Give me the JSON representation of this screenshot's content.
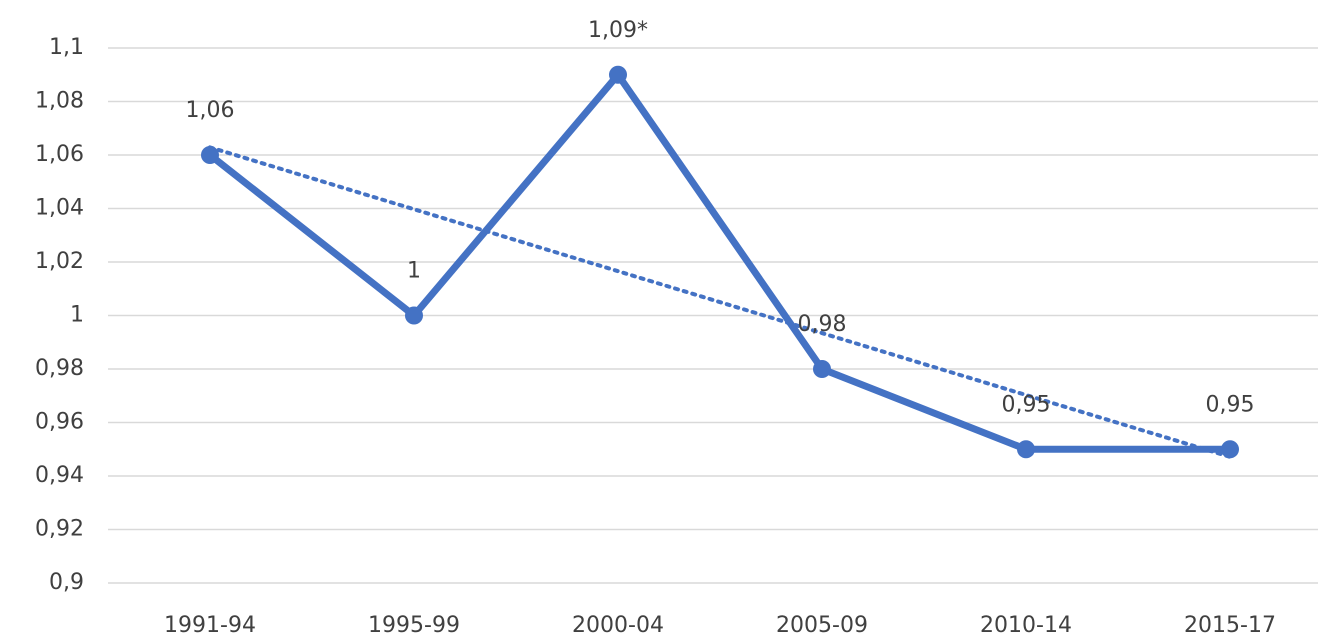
{
  "chart_data": {
    "type": "line",
    "categories": [
      "1991-94",
      "1995-99",
      "2000-04",
      "2005-09",
      "2010-14",
      "2015-17"
    ],
    "series": [
      {
        "color": "#4472c4",
        "values": [
          1.06,
          1.0,
          1.09,
          0.98,
          0.95,
          0.95
        ],
        "value_labels": [
          "1,06",
          "1",
          "1,09*",
          "0,98",
          "0,95",
          "0,95"
        ]
      }
    ],
    "trendline": "linear",
    "ylim": [
      0.9,
      1.1
    ],
    "yticks": [
      {
        "value": 0.9,
        "label": "0,9"
      },
      {
        "value": 0.92,
        "label": "0,92"
      },
      {
        "value": 0.94,
        "label": "0,94"
      },
      {
        "value": 0.96,
        "label": "0,96"
      },
      {
        "value": 0.98,
        "label": "0,98"
      },
      1,
      {
        "value": 1.02,
        "label": "1,02"
      },
      {
        "value": 1.04,
        "label": "1,04"
      },
      {
        "value": 1.06,
        "label": "1,06"
      },
      {
        "value": 1.08,
        "label": "1,08"
      },
      {
        "value": 1.1,
        "label": "1,1"
      }
    ],
    "grid": true
  }
}
